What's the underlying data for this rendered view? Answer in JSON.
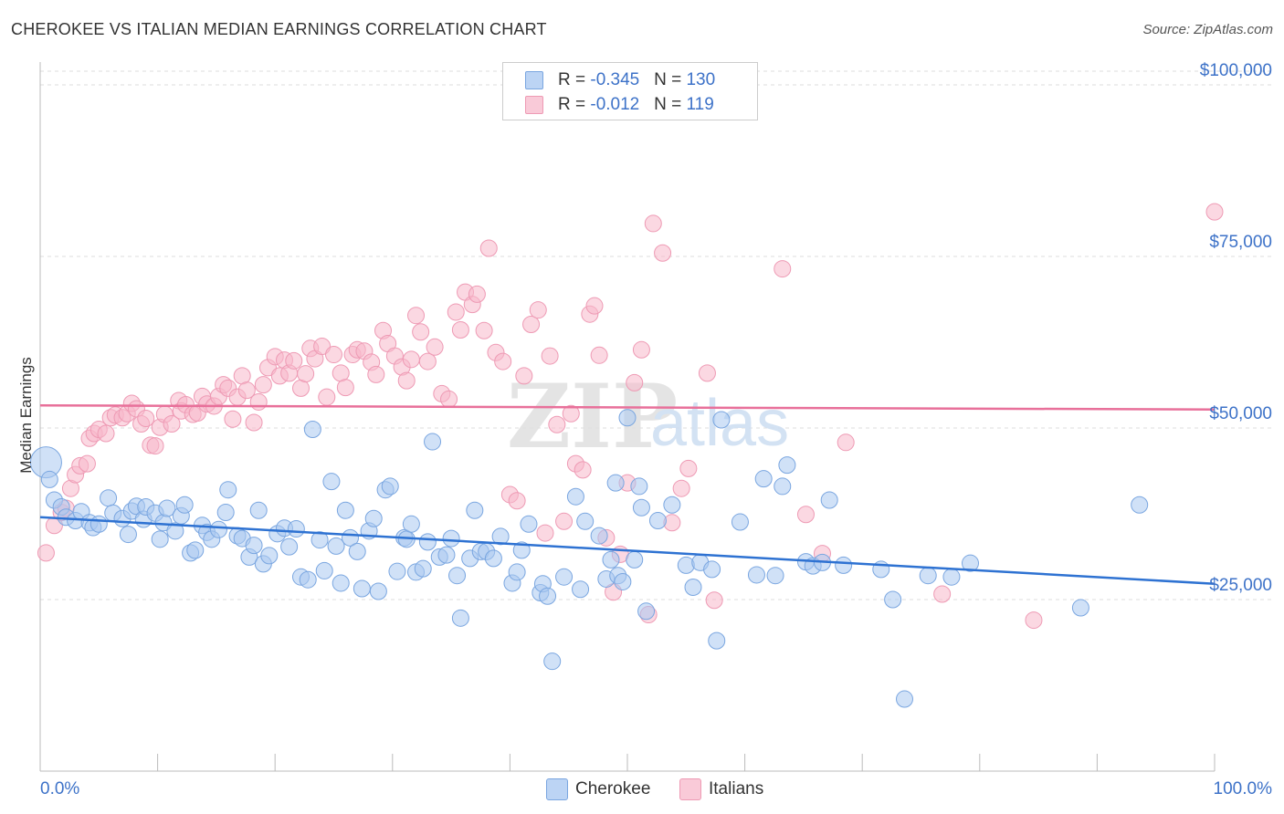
{
  "title": "CHEROKEE VS ITALIAN MEDIAN EARNINGS CORRELATION CHART",
  "source": "Source: ZipAtlas.com",
  "watermark": {
    "zip": "ZIP",
    "atlas": "atlas"
  },
  "legend": {
    "cherokee": {
      "r_label": "R = ",
      "r": "-0.345",
      "n_label": "N = ",
      "n": "130"
    },
    "italians": {
      "r_label": "R = ",
      "r": "-0.012",
      "n_label": "N = ",
      "n": "119"
    }
  },
  "bottom_legend": {
    "cherokee": "Cherokee",
    "italians": "Italians"
  },
  "colors": {
    "cherokee_fill": "#a9c8f0",
    "cherokee_stroke": "#7aa6e0",
    "cherokee_line": "#2e72d2",
    "italians_fill": "#f7b8cb",
    "italians_stroke": "#ee9ab4",
    "italians_line": "#e8709a",
    "axis_label": "#3d72c8",
    "grid": "#dddddd"
  },
  "chart_data": {
    "type": "scatter",
    "title": "CHEROKEE VS ITALIAN MEDIAN EARNINGS CORRELATION CHART",
    "xlabel": "",
    "ylabel": "Median Earnings",
    "xlim": [
      0,
      100
    ],
    "ylim": [
      0,
      102000
    ],
    "x_tick_labels": [
      "0.0%",
      "100.0%"
    ],
    "y_ticks": [
      25000,
      50000,
      75000,
      100000
    ],
    "y_tick_labels": [
      "$25,000",
      "$50,000",
      "$75,000",
      "$100,000"
    ],
    "series": [
      {
        "name": "Cherokee",
        "r": -0.345,
        "n": 130,
        "trend": {
          "x": [
            0,
            100
          ],
          "y": [
            37000,
            27300
          ]
        },
        "points": [
          [
            0.5,
            45000,
            "big"
          ],
          [
            0.8,
            42500
          ],
          [
            1.2,
            39500
          ],
          [
            1.8,
            38500
          ],
          [
            2.2,
            37000
          ],
          [
            3.0,
            36500
          ],
          [
            3.5,
            37800
          ],
          [
            4.2,
            36200
          ],
          [
            4.5,
            35500
          ],
          [
            5.0,
            36000
          ],
          [
            5.8,
            39800
          ],
          [
            6.2,
            37600
          ],
          [
            7.0,
            36800
          ],
          [
            7.5,
            34500
          ],
          [
            7.8,
            37900
          ],
          [
            8.2,
            38600
          ],
          [
            8.8,
            36700
          ],
          [
            9.0,
            38500
          ],
          [
            9.8,
            37600
          ],
          [
            10.2,
            33800
          ],
          [
            10.5,
            36200
          ],
          [
            10.8,
            38300
          ],
          [
            11.5,
            35000
          ],
          [
            12.0,
            37200
          ],
          [
            12.3,
            38800
          ],
          [
            12.8,
            31800
          ],
          [
            13.2,
            32200
          ],
          [
            13.8,
            35800
          ],
          [
            14.2,
            34800
          ],
          [
            14.6,
            33800
          ],
          [
            15.2,
            35200
          ],
          [
            15.8,
            37700
          ],
          [
            16.0,
            41000
          ],
          [
            16.8,
            34300
          ],
          [
            17.2,
            33900
          ],
          [
            17.8,
            31200
          ],
          [
            18.2,
            32900
          ],
          [
            18.6,
            38000
          ],
          [
            19.0,
            30200
          ],
          [
            19.5,
            31400
          ],
          [
            20.2,
            34600
          ],
          [
            20.8,
            35400
          ],
          [
            21.2,
            32700
          ],
          [
            21.8,
            35300
          ],
          [
            22.2,
            28300
          ],
          [
            22.8,
            27900
          ],
          [
            23.2,
            49800
          ],
          [
            23.8,
            33700
          ],
          [
            24.2,
            29200
          ],
          [
            24.8,
            42200
          ],
          [
            25.2,
            32800
          ],
          [
            25.6,
            27400
          ],
          [
            26.0,
            38000
          ],
          [
            26.4,
            34000
          ],
          [
            27.0,
            32000
          ],
          [
            27.4,
            26600
          ],
          [
            28.0,
            35000
          ],
          [
            28.4,
            36800
          ],
          [
            28.8,
            26200
          ],
          [
            29.4,
            41000
          ],
          [
            29.8,
            41500
          ],
          [
            30.4,
            29100
          ],
          [
            31.0,
            34000
          ],
          [
            31.2,
            33800
          ],
          [
            31.6,
            36000
          ],
          [
            32.0,
            29000
          ],
          [
            32.6,
            29500
          ],
          [
            33.0,
            33400
          ],
          [
            33.4,
            48000
          ],
          [
            34.0,
            31200
          ],
          [
            34.6,
            31500
          ],
          [
            35.0,
            33900
          ],
          [
            35.5,
            28500
          ],
          [
            35.8,
            22300
          ],
          [
            36.6,
            31000
          ],
          [
            37.0,
            38000
          ],
          [
            37.5,
            32000
          ],
          [
            38.0,
            32000
          ],
          [
            38.6,
            31000
          ],
          [
            39.2,
            34200
          ],
          [
            40.2,
            27400
          ],
          [
            40.6,
            29000
          ],
          [
            41.0,
            32200
          ],
          [
            41.6,
            36000
          ],
          [
            42.6,
            26000
          ],
          [
            42.8,
            27300
          ],
          [
            43.2,
            25500
          ],
          [
            43.6,
            16000
          ],
          [
            44.6,
            28300
          ],
          [
            45.6,
            40000
          ],
          [
            46.0,
            26500
          ],
          [
            46.4,
            36400
          ],
          [
            47.6,
            34300
          ],
          [
            48.2,
            28000
          ],
          [
            48.6,
            30800
          ],
          [
            49.0,
            42000
          ],
          [
            49.2,
            28500
          ],
          [
            49.6,
            27600
          ],
          [
            50.0,
            51500
          ],
          [
            50.6,
            30800
          ],
          [
            51.0,
            41500
          ],
          [
            51.6,
            23300
          ],
          [
            51.2,
            38400
          ],
          [
            52.6,
            36500
          ],
          [
            53.8,
            38800
          ],
          [
            55.0,
            30000
          ],
          [
            55.6,
            26800
          ],
          [
            56.2,
            30400
          ],
          [
            57.2,
            29400
          ],
          [
            57.6,
            19000
          ],
          [
            58.0,
            51200
          ],
          [
            59.6,
            36300
          ],
          [
            61.0,
            28600
          ],
          [
            61.6,
            42600
          ],
          [
            62.6,
            28500
          ],
          [
            63.2,
            41500
          ],
          [
            63.6,
            44600
          ],
          [
            65.2,
            30500
          ],
          [
            65.8,
            29900
          ],
          [
            66.6,
            30400
          ],
          [
            67.2,
            39500
          ],
          [
            68.4,
            30000
          ],
          [
            71.6,
            29400
          ],
          [
            72.6,
            25000
          ],
          [
            73.6,
            10500
          ],
          [
            75.6,
            28500
          ],
          [
            77.6,
            28300
          ],
          [
            79.2,
            30300
          ],
          [
            88.6,
            23800
          ],
          [
            93.6,
            38800
          ]
        ]
      },
      {
        "name": "Italians",
        "r": -0.012,
        "n": 119,
        "trend": {
          "x": [
            0,
            100
          ],
          "y": [
            53300,
            52700
          ]
        },
        "points": [
          [
            0.5,
            31800
          ],
          [
            1.2,
            35800
          ],
          [
            1.8,
            37700
          ],
          [
            2.2,
            38300
          ],
          [
            2.6,
            41200
          ],
          [
            3.0,
            43200
          ],
          [
            3.4,
            44500
          ],
          [
            4.0,
            44800
          ],
          [
            4.2,
            48500
          ],
          [
            4.6,
            49200
          ],
          [
            5.0,
            49800
          ],
          [
            5.6,
            49200
          ],
          [
            6.0,
            51500
          ],
          [
            6.4,
            51900
          ],
          [
            7.0,
            51500
          ],
          [
            7.4,
            52100
          ],
          [
            7.8,
            53600
          ],
          [
            8.2,
            52800
          ],
          [
            8.6,
            50600
          ],
          [
            9.0,
            51400
          ],
          [
            9.4,
            47500
          ],
          [
            9.8,
            47400
          ],
          [
            10.2,
            50100
          ],
          [
            10.6,
            52000
          ],
          [
            11.2,
            50600
          ],
          [
            11.8,
            54000
          ],
          [
            12.0,
            52500
          ],
          [
            12.4,
            53400
          ],
          [
            13.0,
            52000
          ],
          [
            13.4,
            52200
          ],
          [
            13.8,
            54600
          ],
          [
            14.2,
            53500
          ],
          [
            14.8,
            53200
          ],
          [
            15.2,
            54600
          ],
          [
            15.6,
            56300
          ],
          [
            16.0,
            55800
          ],
          [
            16.4,
            51300
          ],
          [
            16.8,
            54500
          ],
          [
            17.2,
            57600
          ],
          [
            17.6,
            55500
          ],
          [
            18.2,
            50800
          ],
          [
            18.6,
            53800
          ],
          [
            19.0,
            56300
          ],
          [
            19.4,
            58800
          ],
          [
            20.0,
            60400
          ],
          [
            20.4,
            57600
          ],
          [
            20.8,
            59900
          ],
          [
            21.2,
            58000
          ],
          [
            21.6,
            59800
          ],
          [
            22.2,
            55800
          ],
          [
            22.6,
            57900
          ],
          [
            23.0,
            61600
          ],
          [
            23.4,
            60100
          ],
          [
            24.0,
            61900
          ],
          [
            24.4,
            54500
          ],
          [
            25.0,
            60700
          ],
          [
            25.6,
            58000
          ],
          [
            26.0,
            55900
          ],
          [
            26.6,
            60700
          ],
          [
            27.0,
            61400
          ],
          [
            27.6,
            61200
          ],
          [
            28.2,
            59600
          ],
          [
            28.6,
            57800
          ],
          [
            29.2,
            64200
          ],
          [
            29.6,
            62300
          ],
          [
            30.2,
            60500
          ],
          [
            30.8,
            58900
          ],
          [
            31.2,
            56900
          ],
          [
            31.6,
            60000
          ],
          [
            32.0,
            66400
          ],
          [
            32.4,
            64000
          ],
          [
            33.0,
            59700
          ],
          [
            33.6,
            61800
          ],
          [
            34.2,
            55000
          ],
          [
            34.8,
            54200
          ],
          [
            35.4,
            66900
          ],
          [
            35.8,
            64300
          ],
          [
            36.2,
            69800
          ],
          [
            36.8,
            68000
          ],
          [
            37.2,
            69500
          ],
          [
            37.8,
            64200
          ],
          [
            38.2,
            76200
          ],
          [
            38.8,
            61000
          ],
          [
            39.4,
            59700
          ],
          [
            40.0,
            40300
          ],
          [
            40.6,
            39400
          ],
          [
            41.2,
            57600
          ],
          [
            41.8,
            65100
          ],
          [
            42.4,
            67200
          ],
          [
            43.0,
            34700
          ],
          [
            43.4,
            60500
          ],
          [
            44.0,
            50500
          ],
          [
            44.6,
            36400
          ],
          [
            45.2,
            52100
          ],
          [
            45.6,
            44800
          ],
          [
            46.2,
            43900
          ],
          [
            46.8,
            66600
          ],
          [
            47.2,
            67800
          ],
          [
            47.6,
            60600
          ],
          [
            48.2,
            34000
          ],
          [
            48.8,
            26100
          ],
          [
            49.4,
            31600
          ],
          [
            50.0,
            42000
          ],
          [
            50.6,
            56600
          ],
          [
            51.2,
            61400
          ],
          [
            51.8,
            22800
          ],
          [
            52.2,
            79800
          ],
          [
            53.0,
            75500
          ],
          [
            53.8,
            36200
          ],
          [
            54.6,
            41200
          ],
          [
            55.2,
            44100
          ],
          [
            56.8,
            58000
          ],
          [
            57.4,
            24900
          ],
          [
            63.2,
            73200
          ],
          [
            65.2,
            37400
          ],
          [
            66.6,
            31700
          ],
          [
            68.6,
            47900
          ],
          [
            76.8,
            25800
          ],
          [
            84.6,
            22000
          ],
          [
            100.0,
            81500
          ]
        ]
      }
    ]
  }
}
